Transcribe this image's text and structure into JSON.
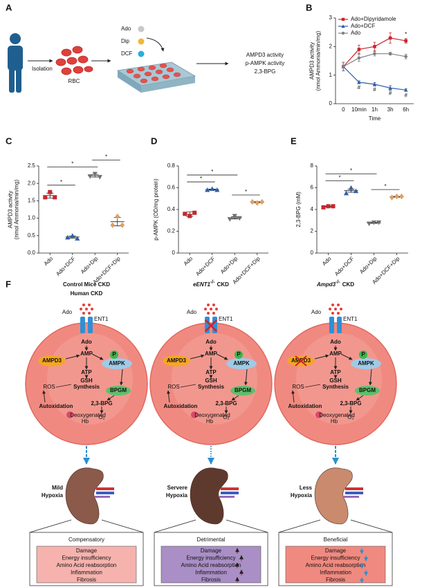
{
  "panel_a": {
    "label": "A",
    "isolation": "Isolation",
    "rbc": "RBC",
    "treatments": [
      {
        "name": "Ado",
        "color": "#c8c8c8"
      },
      {
        "name": "Dip",
        "color": "#f2b735"
      },
      {
        "name": "DCF",
        "color": "#29aee0"
      }
    ],
    "readouts": [
      "AMPD3 activity",
      "p-AMPK activity",
      "2,3-BPG"
    ]
  },
  "chart_data": [
    {
      "type": "line",
      "label": "B",
      "categories": [
        "0",
        "10min",
        "1h",
        "3h",
        "6h"
      ],
      "series": [
        {
          "name": "Ado+Dipyridamole",
          "color": "#c8262c",
          "marker": "square",
          "values": [
            1.3,
            1.9,
            2.0,
            2.3,
            2.2
          ],
          "errors": [
            0.15,
            0.15,
            0.15,
            0.18,
            0.08
          ]
        },
        {
          "name": "Ado+DCF",
          "color": "#2f5fa8",
          "marker": "triangle",
          "values": [
            1.3,
            0.75,
            0.68,
            0.55,
            0.48
          ],
          "errors": [
            0.15,
            0.05,
            0.06,
            0.08,
            0.05
          ]
        },
        {
          "name": "Ado",
          "color": "#808080",
          "marker": "circle",
          "values": [
            1.3,
            1.6,
            1.75,
            1.75,
            1.65
          ],
          "errors": [
            0.15,
            0.12,
            0.08,
            0.05,
            0.08
          ]
        }
      ],
      "ylim": [
        0,
        3
      ],
      "yticks": [
        0,
        1,
        2,
        3
      ],
      "ylabel": [
        "AMPD3 activity",
        "(nmol Ammonia/min/mg)"
      ],
      "xlabel": "Time",
      "annotations": [
        {
          "series": "Ado+DCF",
          "category": "10min",
          "label": "#"
        },
        {
          "series": "Ado+DCF",
          "category": "1h",
          "label": "#"
        },
        {
          "series": "Ado+DCF",
          "category": "3h",
          "label": "#"
        },
        {
          "series": "Ado+DCF",
          "category": "6h",
          "label": "#"
        },
        {
          "series": "Ado+Dipyridamole",
          "category": "6h",
          "label": "*"
        }
      ]
    },
    {
      "type": "dot",
      "label": "C",
      "categories": [
        "Ado",
        "Ado+DCF",
        "Ado+Dip",
        "Ado+DCF+Dip"
      ],
      "colors": [
        "#c8262c",
        "#2f5fa8",
        "#707070",
        "#e0a060"
      ],
      "markers": [
        "square",
        "triangle",
        "inverted-triangle",
        "diamond"
      ],
      "points": [
        [
          1.6,
          1.75,
          1.6
        ],
        [
          0.45,
          0.5,
          0.42
        ],
        [
          2.2,
          2.27,
          2.18
        ],
        [
          0.8,
          1.05,
          0.8
        ]
      ],
      "means": [
        1.65,
        0.46,
        2.22,
        0.9
      ],
      "errors": [
        0.07,
        0.03,
        0.04,
        0.12
      ],
      "ylim": [
        0,
        2.5
      ],
      "yticks": [
        {
          "value": 0,
          "label": "0.0"
        },
        0.5,
        {
          "value": 1,
          "label": "1.0"
        },
        1.5,
        {
          "value": 2,
          "label": "2.0"
        },
        2.5
      ],
      "ylabel": [
        "AMPD3 activity",
        "(nmol Ammonia/min/mg)"
      ],
      "significance": [
        {
          "from": "Ado",
          "to": "Ado+DCF",
          "label": "*"
        },
        {
          "from": "Ado",
          "to": "Ado+Dip",
          "label": "*"
        },
        {
          "from": "Ado+Dip",
          "to": "Ado+DCF+Dip",
          "label": "*"
        }
      ]
    },
    {
      "type": "dot",
      "label": "D",
      "categories": [
        "Ado",
        "Ado+DCF",
        "Ado+Dip",
        "Ado+DCF+Dip"
      ],
      "colors": [
        "#c8262c",
        "#2f5fa8",
        "#707070",
        "#e0a060"
      ],
      "markers": [
        "square",
        "triangle",
        "inverted-triangle",
        "diamond"
      ],
      "points": [
        [
          0.36,
          0.34,
          0.37
        ],
        [
          0.58,
          0.59,
          0.58
        ],
        [
          0.31,
          0.34,
          0.32
        ],
        [
          0.47,
          0.46,
          0.47
        ]
      ],
      "means": [
        0.357,
        0.583,
        0.323,
        0.467
      ],
      "errors": [
        0.02,
        0.004,
        0.01,
        0.004
      ],
      "ylim": [
        0,
        0.8
      ],
      "yticks": [
        0,
        0.2,
        0.4,
        0.6,
        0.8
      ],
      "ylabel": [
        "p-AMPK (OD/mg protein)"
      ],
      "significance": [
        {
          "from": "Ado",
          "to": "Ado+DCF",
          "label": "*"
        },
        {
          "from": "Ado",
          "to": "Ado+Dip",
          "label": "*"
        },
        {
          "from": "Ado+Dip",
          "to": "Ado+DCF+Dip",
          "label": "*"
        }
      ]
    },
    {
      "type": "dot",
      "label": "E",
      "categories": [
        "Ado",
        "Ado+DCF",
        "Ado+Dip",
        "Ado+DCF+Dip"
      ],
      "colors": [
        "#c8262c",
        "#2f5fa8",
        "#707070",
        "#e0a060"
      ],
      "markers": [
        "square",
        "triangle",
        "inverted-triangle",
        "diamond"
      ],
      "points": [
        [
          4.2,
          4.3,
          4.3
        ],
        [
          5.5,
          6.0,
          5.7
        ],
        [
          2.7,
          2.8,
          2.8
        ],
        [
          5.1,
          5.2,
          5.2
        ]
      ],
      "means": [
        4.27,
        5.73,
        2.77,
        5.17
      ],
      "errors": [
        0.04,
        0.15,
        0.04,
        0.04
      ],
      "ylim": [
        0,
        8
      ],
      "yticks": [
        0,
        2,
        4,
        6,
        8
      ],
      "ylabel": [
        "2,3-BPG (mM)"
      ],
      "significance": [
        {
          "from": "Ado",
          "to": "Ado+DCF",
          "label": "*"
        },
        {
          "from": "Ado",
          "to": "Ado+Dip",
          "label": "*"
        },
        {
          "from": "Ado+Dip",
          "to": "Ado+DCF+Dip",
          "label": "*"
        }
      ]
    }
  ],
  "panel_f": {
    "label": "F",
    "cell": {
      "extracellular": "Ado",
      "transporter": "ENT1",
      "ado": "Ado",
      "amp": "AMP",
      "ampd3": "AMPD3",
      "phospho": "P",
      "ampk": "AMPK",
      "atp": "ATP",
      "gsh": [
        "GSH",
        "Synthesis"
      ],
      "ros": "ROS",
      "bpgm": "BPGM",
      "bpg": "2,3-BPG",
      "autoxidation": "Autoxidation",
      "deoxy": [
        "Deoxygenated",
        "Hb"
      ],
      "o2": "O₂"
    },
    "box_items": [
      "Damage",
      "Energy insufficiency",
      "Amino Acid reabsorption",
      "Inflammation",
      "Fibrosis"
    ],
    "columns": [
      {
        "title": [
          "Control Mice CKD",
          "Human CKD"
        ],
        "hypoxia": [
          "Mild",
          "Hypoxia"
        ],
        "outcome": "Compensatory",
        "outcome_color": "#d0312d",
        "box_color": "#f6b3ae",
        "kidney_color": "#8b5a4a"
      },
      {
        "gene": "eENT1",
        "superscript": "-/-",
        "suffix": "CKD",
        "hypoxia": [
          "Servere",
          "Hypoxia"
        ],
        "outcome": "Detrimental",
        "outcome_color": "#7a4fa6",
        "box_color": "#a98fc5",
        "kidney_color": "#5e3a2e",
        "transporter_blocked": true,
        "trend": "up"
      },
      {
        "gene": "Ampd3",
        "superscript": "-/-",
        "suffix": "CKD",
        "hypoxia": [
          "Less",
          "Hypoxia"
        ],
        "outcome": "Beneficial",
        "outcome_color": "#f0807a",
        "box_color": "#f08a80",
        "kidney_color": "#c98a6e",
        "ampd3_blocked": true,
        "trend": "down"
      }
    ]
  }
}
